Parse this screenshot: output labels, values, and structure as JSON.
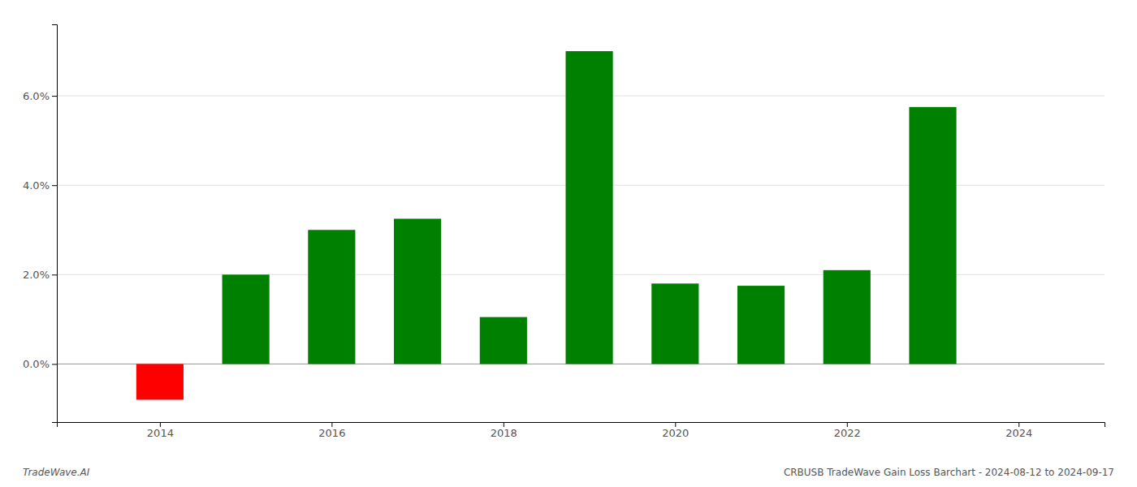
{
  "chart_data": {
    "type": "bar",
    "x": [
      2014,
      2015,
      2016,
      2017,
      2018,
      2019,
      2020,
      2021,
      2022,
      2023
    ],
    "values": [
      -0.008,
      0.02,
      0.03,
      0.0325,
      0.0105,
      0.07,
      0.018,
      0.0175,
      0.021,
      0.0575
    ],
    "colors": [
      "#ff0000",
      "#008000",
      "#008000",
      "#008000",
      "#008000",
      "#008000",
      "#008000",
      "#008000",
      "#008000",
      "#008000"
    ],
    "xlim": [
      2012.8,
      2025.0
    ],
    "xticks": [
      2014,
      2016,
      2018,
      2020,
      2022,
      2024
    ],
    "ylim": [
      -0.013,
      0.076
    ],
    "yticks": [
      {
        "value": 0.0,
        "label": "0.0%"
      },
      {
        "value": 0.02,
        "label": "2.0%"
      },
      {
        "value": 0.04,
        "label": "4.0%"
      },
      {
        "value": 0.06,
        "label": "6.0%"
      }
    ],
    "grid": true,
    "annotations": [
      "TradeWave.AI",
      "CRBUSB TradeWave Gain Loss Barchart - 2024-08-12 to 2024-09-17"
    ]
  }
}
